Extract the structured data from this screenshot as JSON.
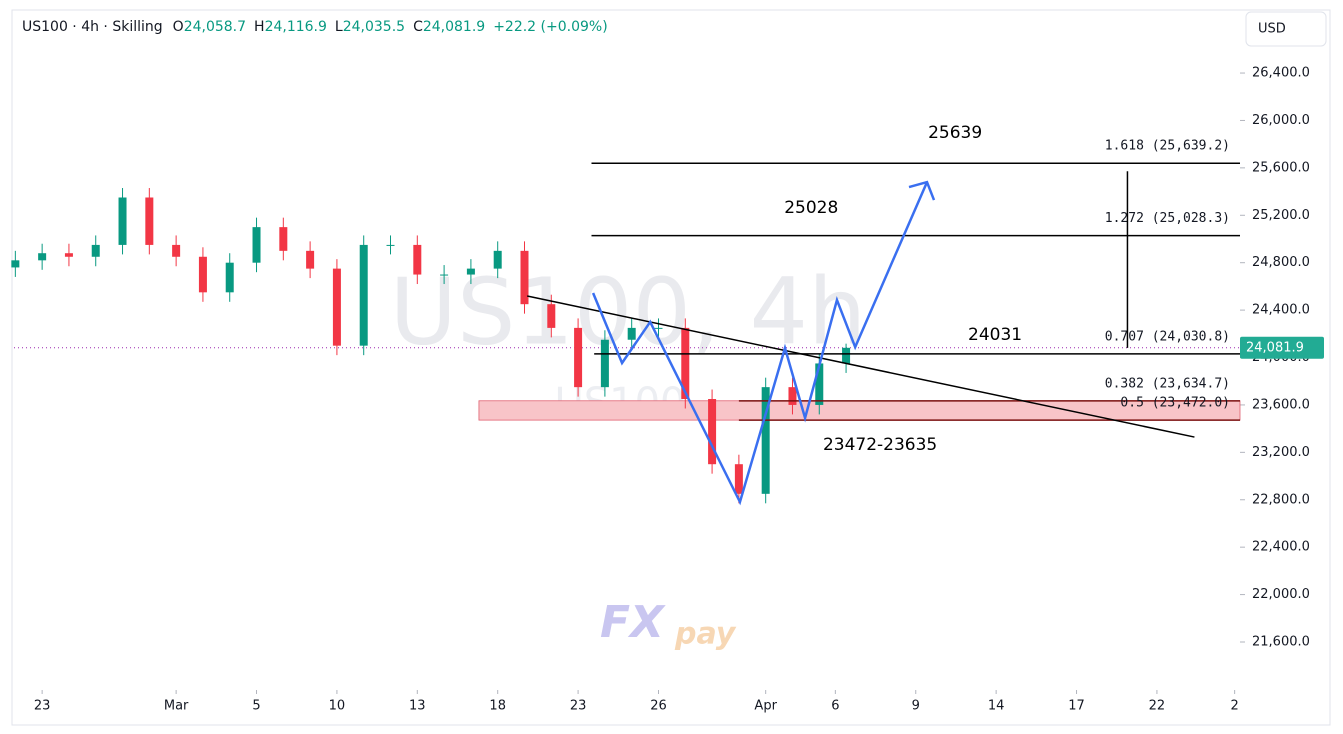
{
  "header": {
    "symbol": "US100 · 4h · Skilling",
    "ohlc": [
      {
        "key": "O",
        "value": "24,058.7"
      },
      {
        "key": "H",
        "value": "24,116.9"
      },
      {
        "key": "L",
        "value": "24,035.5"
      },
      {
        "key": "C",
        "value": "24,081.9"
      }
    ],
    "change": "+22.2 (+0.09%)",
    "currency": "USD"
  },
  "watermark": {
    "big": "US100, 4h",
    "small": "US100",
    "logo_a": "FX",
    "logo_b": "pay"
  },
  "chart_data": {
    "type": "candlestick",
    "up_color": "#089981",
    "down_color": "#f23645",
    "grid": false,
    "x": [
      -1,
      0,
      1,
      2,
      3,
      4,
      5,
      6,
      7,
      8,
      9,
      10,
      11,
      12,
      13,
      14,
      15,
      16,
      17,
      18,
      19,
      20,
      21,
      22,
      23,
      24,
      25,
      26,
      27,
      28,
      29,
      30
    ],
    "open": [
      24760,
      24820,
      24880,
      24850,
      24950,
      25350,
      24950,
      24850,
      24550,
      24800,
      25100,
      24900,
      24750,
      24100,
      24950,
      24950,
      24700,
      24700,
      24750,
      24900,
      24450,
      24250,
      23750,
      24150,
      24250,
      24250,
      23650,
      23100,
      22850,
      23750,
      23600,
      23950
    ],
    "high": [
      24900,
      24960,
      24960,
      25030,
      25430,
      25430,
      25030,
      24930,
      24880,
      25180,
      25180,
      24980,
      24830,
      25030,
      25030,
      25030,
      24780,
      24830,
      24980,
      24980,
      24530,
      24330,
      24230,
      24330,
      24330,
      24330,
      23730,
      23180,
      23830,
      23830,
      24030,
      24116.9
    ],
    "low": [
      24680,
      24740,
      24770,
      24770,
      24870,
      24870,
      24770,
      24470,
      24470,
      24720,
      24820,
      24670,
      24020,
      24020,
      24870,
      24620,
      24620,
      24620,
      24670,
      24370,
      24170,
      23670,
      23670,
      24070,
      24170,
      23570,
      23020,
      22770,
      22770,
      23520,
      23520,
      23870
    ],
    "close": [
      24820,
      24880,
      24850,
      24950,
      25350,
      24950,
      24850,
      24550,
      24800,
      25100,
      24900,
      24750,
      24100,
      24950,
      24950,
      24700,
      24700,
      24750,
      24900,
      24450,
      24250,
      23750,
      24150,
      24250,
      24250,
      23650,
      23100,
      22850,
      23750,
      23600,
      23950,
      24081.9
    ],
    "xlim": [
      -1.05,
      44.7
    ],
    "ylim": [
      21195,
      26915
    ],
    "xticks": [
      {
        "value": 0,
        "label": "23"
      },
      {
        "value": 5,
        "label": "Mar"
      },
      {
        "value": 8,
        "label": "5"
      },
      {
        "value": 11,
        "label": "10"
      },
      {
        "value": 14,
        "label": "13"
      },
      {
        "value": 17,
        "label": "18"
      },
      {
        "value": 20,
        "label": "23"
      },
      {
        "value": 23,
        "label": "26"
      },
      {
        "value": 27,
        "label": "Apr"
      },
      {
        "value": 29.6,
        "label": "6"
      },
      {
        "value": 32.6,
        "label": "9"
      },
      {
        "value": 35.6,
        "label": "14"
      },
      {
        "value": 38.6,
        "label": "17"
      },
      {
        "value": 41.6,
        "label": "22"
      },
      {
        "value": 44.5,
        "label": "2"
      }
    ],
    "yticks": [
      {
        "value": 21600,
        "label": "21,600.0"
      },
      {
        "value": 22000,
        "label": "22,000.0"
      },
      {
        "value": 22400,
        "label": "22,400.0"
      },
      {
        "value": 22800,
        "label": "22,800.0"
      },
      {
        "value": 23200,
        "label": "23,200.0"
      },
      {
        "value": 23600,
        "label": "23,600.0"
      },
      {
        "value": 24000,
        "label": "24,000.0"
      },
      {
        "value": 24400,
        "label": "24,400.0"
      },
      {
        "value": 24800,
        "label": "24,800.0"
      },
      {
        "value": 25200,
        "label": "25,200.0"
      },
      {
        "value": 25600,
        "label": "25,600.0"
      },
      {
        "value": 26000,
        "label": "26,000.0"
      },
      {
        "value": 26400,
        "label": "26,400.0"
      }
    ],
    "last": {
      "value": 24081.9,
      "label": "24,081.9",
      "color": "#22ab94"
    },
    "fib_levels": [
      {
        "value": 25639.2,
        "label": "1.618 (25,639.2)",
        "x_start": 20.5,
        "color": "#000000"
      },
      {
        "value": 25028.3,
        "label": "1.272 (25,028.3)",
        "x_start": 20.5,
        "color": "#000000"
      },
      {
        "value": 24030.8,
        "label": "0.707 (24,030.8)",
        "x_start": 20.6,
        "color": "#000000"
      },
      {
        "value": 23634.7,
        "label": "0.382 (23,634.7)",
        "x_start": 26,
        "color": "#7b1010"
      },
      {
        "value": 23472.0,
        "label": "0.5 (23,472.0)",
        "x_start": 26,
        "color": "#7b1010"
      }
    ],
    "measure_x": 40.5,
    "zone": {
      "from": 23472,
      "to": 23635,
      "x_start": 16.3,
      "color": "#f8c4c8"
    },
    "trendline": {
      "x": [
        18.1,
        43.0
      ],
      "values": [
        24519,
        23329
      ],
      "color": "#000000"
    },
    "projection": {
      "x": [
        20.56,
        21.64,
        22.69,
        26.04,
        27.72,
        28.47,
        29.66,
        30.34,
        33.02
      ],
      "values": [
        24544,
        23954,
        24300,
        22781,
        24080,
        23490,
        24485,
        24088,
        25480
      ],
      "color": "#3a6ff0"
    },
    "annotations": [
      {
        "text": "25639",
        "x": 34.07,
        "y": 25894
      },
      {
        "text": "25028",
        "x": 28.7,
        "y": 25261
      },
      {
        "text": "24031",
        "x": 35.56,
        "y": 24190
      },
      {
        "text": "23472-23635",
        "x": 31.27,
        "y": 23262
      }
    ]
  }
}
